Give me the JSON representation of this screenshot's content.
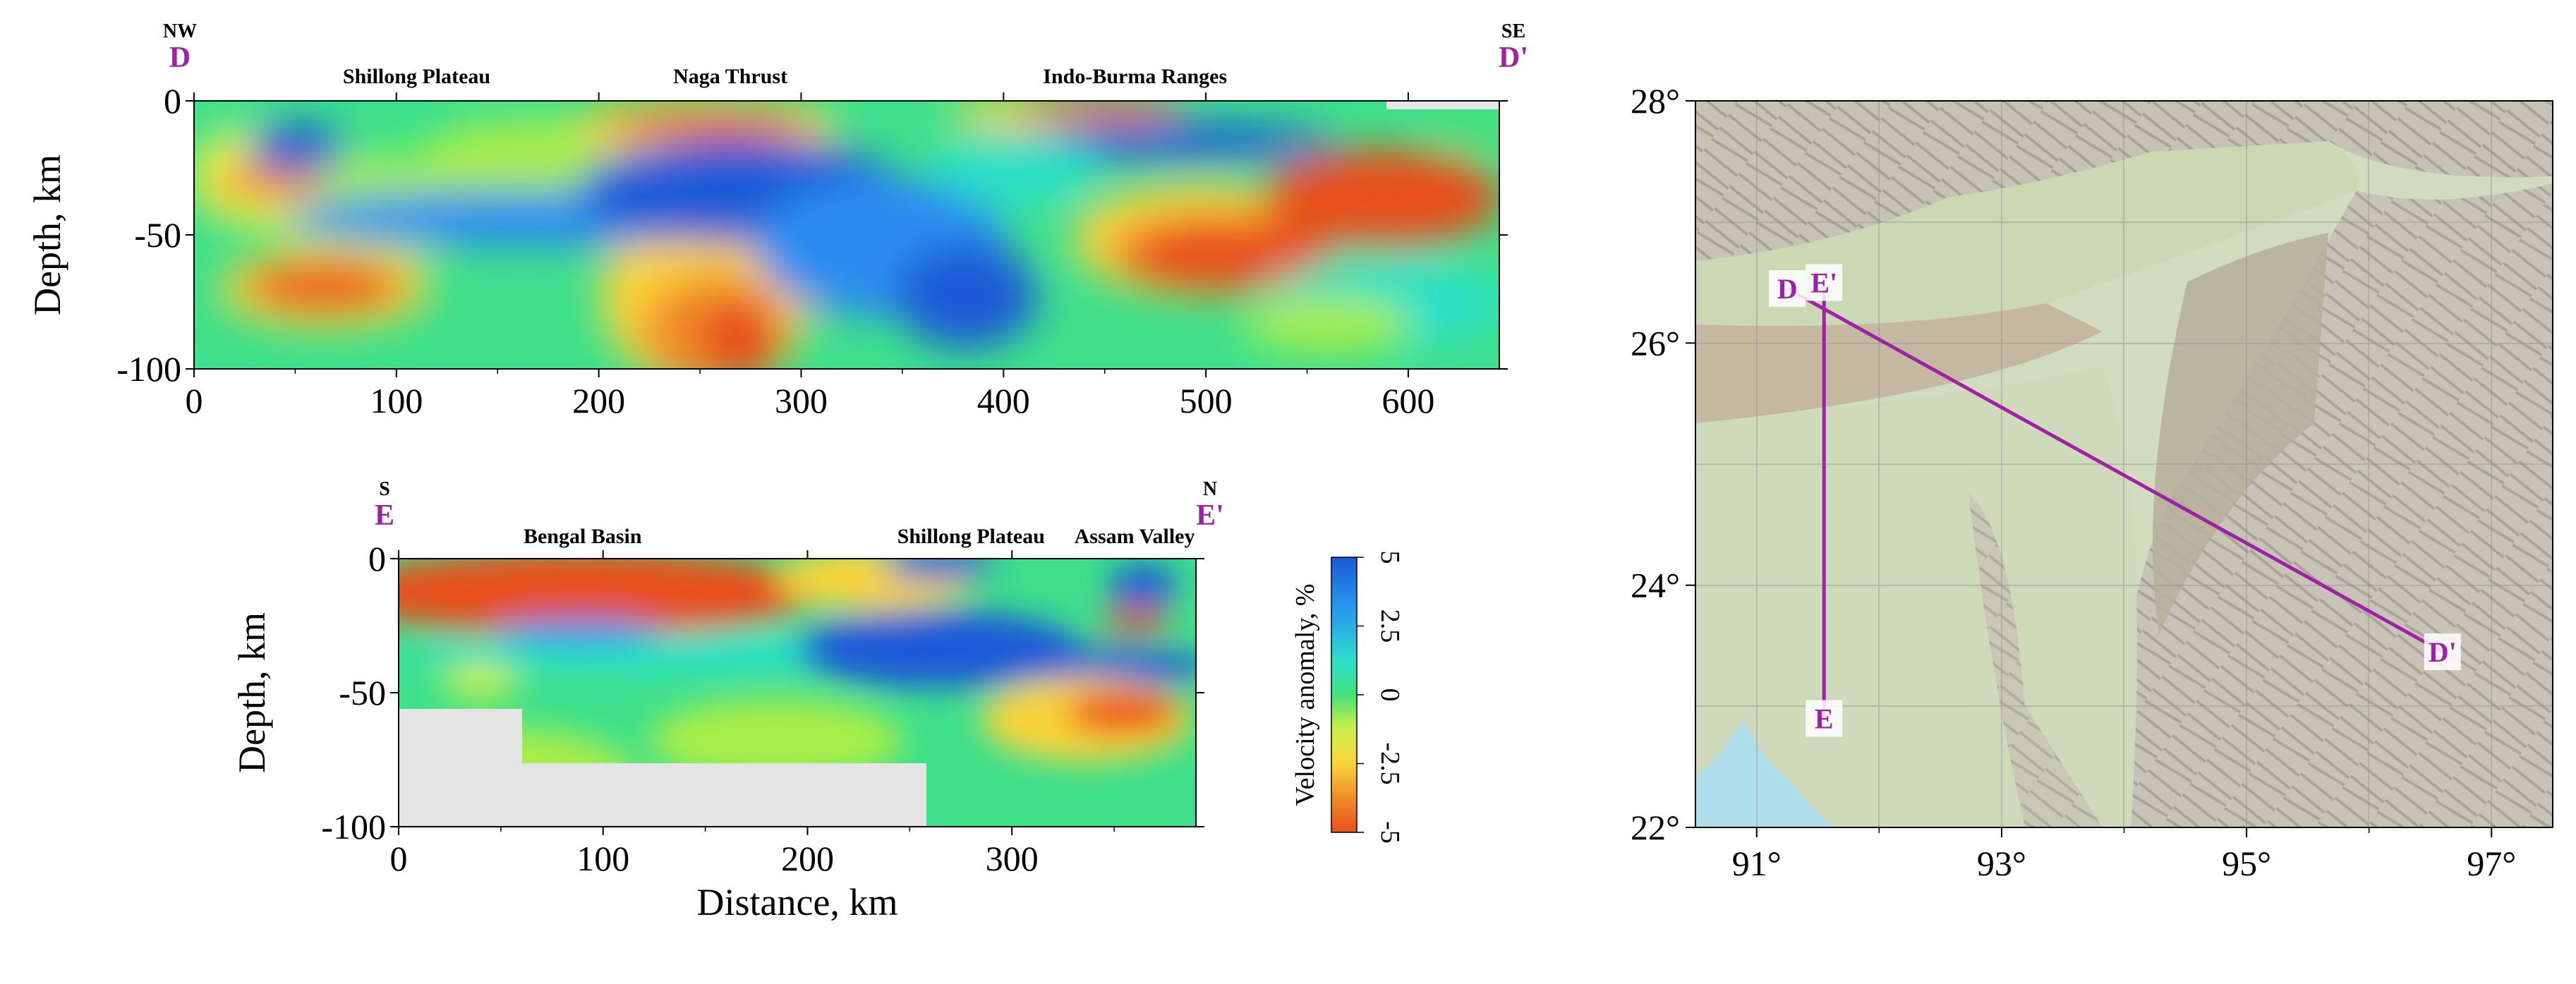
{
  "chart_data": [
    {
      "type": "heatmap",
      "id": "section-D",
      "ylabel": "Depth, km",
      "xlabel": "",
      "xlim": [
        0,
        645
      ],
      "ylim": [
        -100,
        0
      ],
      "xticks": [
        "0",
        "100",
        "200",
        "300",
        "400",
        "500",
        "600"
      ],
      "yticks": [
        "0",
        "-50",
        "-100"
      ],
      "start_label": "D",
      "end_label": "D'",
      "start_dir": "NW",
      "end_dir": "SE",
      "annotations": [
        "Shillong Plateau",
        "Naga Thrust",
        "Indo-Burma Ranges"
      ],
      "colormap": [
        "#e8501a",
        "#f08a2a",
        "#fbd43a",
        "#f2f24a",
        "#a8ee4a",
        "#44e07a",
        "#2ce0c8",
        "#32c4ee",
        "#2a8cf0",
        "#1a5ad8"
      ],
      "value_range": [
        -5,
        5
      ]
    },
    {
      "type": "heatmap",
      "id": "section-E",
      "ylabel": "Depth, km",
      "xlabel": "Distance, km",
      "xlim": [
        0,
        390
      ],
      "ylim": [
        -100,
        0
      ],
      "xticks": [
        "0",
        "100",
        "200",
        "300"
      ],
      "yticks": [
        "0",
        "-50",
        "-100"
      ],
      "start_label": "E",
      "end_label": "E'",
      "start_dir": "S",
      "end_dir": "N",
      "annotations": [
        "Bengal Basin",
        "Shillong Plateau",
        "Assam Valley"
      ]
    },
    {
      "type": "colorbar",
      "label": "Velocity anomaly, %",
      "ticks": [
        "5",
        "2.5",
        "0",
        "-2.5",
        "-5"
      ],
      "range": [
        -5,
        5
      ]
    },
    {
      "type": "map",
      "lon_range": [
        90.5,
        97.5
      ],
      "lat_range": [
        22,
        28
      ],
      "lon_ticks": [
        "91°",
        "93°",
        "95°",
        "97°"
      ],
      "lat_ticks": [
        "28°",
        "26°",
        "24°",
        "22°"
      ],
      "profiles": [
        {
          "label_start": "D",
          "label_end": "D'",
          "start": [
            91.25,
            26.45
          ],
          "end": [
            96.6,
            23.45
          ]
        },
        {
          "label_start": "E'",
          "label_end": "E",
          "start": [
            91.55,
            26.5
          ],
          "end": [
            91.55,
            22.9
          ]
        }
      ],
      "line_color": "#a020a8"
    }
  ]
}
